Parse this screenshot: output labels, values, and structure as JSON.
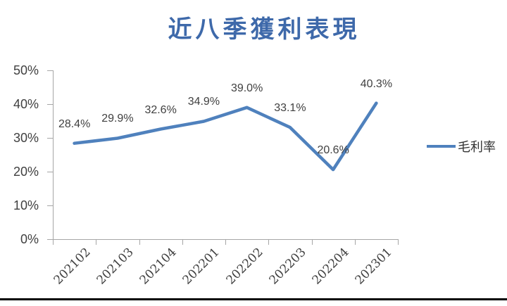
{
  "chart_data": {
    "type": "line",
    "title": "近八季獲利表現",
    "categories": [
      "202102",
      "202103",
      "202104",
      "202201",
      "202202",
      "202203",
      "202204",
      "202301"
    ],
    "series": [
      {
        "name": "毛利率",
        "values": [
          28.4,
          29.9,
          32.6,
          34.9,
          39.0,
          33.1,
          20.6,
          40.3
        ]
      }
    ],
    "data_labels": [
      "28.4%",
      "29.9%",
      "32.6%",
      "34.9%",
      "39.0%",
      "33.1%",
      "20.6%",
      "40.3%"
    ],
    "xlabel": "",
    "ylabel": "",
    "ylim": [
      0,
      50
    ],
    "y_ticks": [
      "0%",
      "10%",
      "20%",
      "30%",
      "40%",
      "50%"
    ],
    "grid": false,
    "legend_position": "right",
    "colors": {
      "line": "#4F81BD",
      "title": "#3E69AA",
      "axis": "#A6A6A6",
      "label_text": "#404040",
      "bottom_rule": "#000000"
    }
  }
}
